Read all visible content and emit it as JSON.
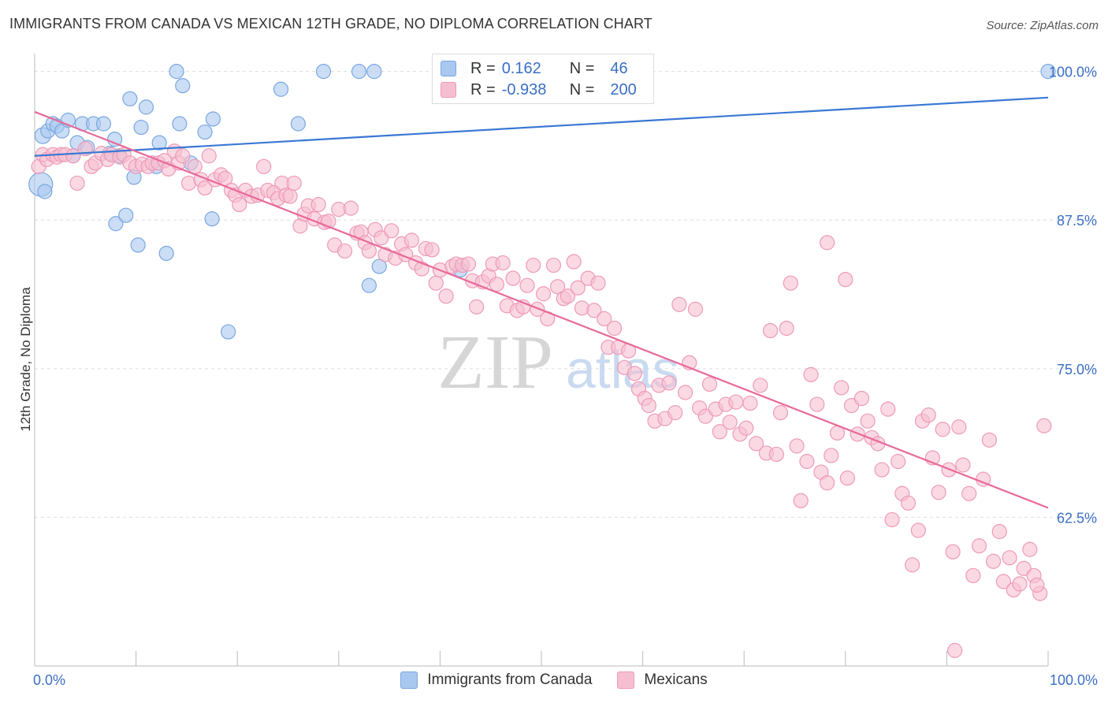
{
  "title": "IMMIGRANTS FROM CANADA VS MEXICAN 12TH GRADE, NO DIPLOMA CORRELATION CHART",
  "source": "Source: ZipAtlas.com",
  "watermark": {
    "zip": "ZIP",
    "atlas": "atlas"
  },
  "legend": {
    "rows": [
      {
        "r_label": "R =",
        "r_value": "0.162",
        "n_label": "N =",
        "n_value": "46"
      },
      {
        "r_label": "R =",
        "r_value": "-0.938",
        "n_label": "N =",
        "n_value": "200"
      }
    ]
  },
  "bottom_legend": {
    "series1": "Immigrants from Canada",
    "series2": "Mexicans"
  },
  "colors": {
    "canada_fill": "#a9c8f0",
    "canada_stroke": "#7aa7e0",
    "canada_line": "#3a78d4",
    "mexican_fill": "#f6bfd1",
    "mexican_stroke": "#ee9ab8",
    "mexican_line": "#e8699a",
    "tick_label": "#3a6fc4",
    "grid": "#dddddd"
  },
  "chart_data": {
    "type": "scatter",
    "title": "IMMIGRANTS FROM CANADA VS MEXICAN 12TH GRADE, NO DIPLOMA CORRELATION CHART",
    "xlabel": "",
    "ylabel": "12th Grade, No Diploma",
    "xlim": [
      0,
      100
    ],
    "ylim": [
      50,
      101.5
    ],
    "x_tick_labels": [
      "0.0%",
      "100.0%"
    ],
    "y_ticks": [
      62.5,
      75.0,
      87.5,
      100.0
    ],
    "y_tick_labels": [
      "62.5%",
      "75.0%",
      "87.5%",
      "100.0%"
    ],
    "grid": true,
    "legend_position": "top-center",
    "series": [
      {
        "name": "Immigrants from Canada",
        "r": 0.162,
        "n": 46,
        "trend": [
          [
            0,
            92.9
          ],
          [
            100,
            97.8
          ]
        ],
        "points": [
          [
            0.6,
            90.5
          ],
          [
            0.8,
            94.6
          ],
          [
            1.3,
            95.0
          ],
          [
            1.8,
            95.6
          ],
          [
            2.2,
            95.4
          ],
          [
            2.7,
            95.0
          ],
          [
            3.3,
            95.9
          ],
          [
            3.8,
            92.9
          ],
          [
            4.2,
            94.0
          ],
          [
            4.7,
            95.6
          ],
          [
            5.2,
            93.6
          ],
          [
            5.8,
            95.6
          ],
          [
            6.8,
            95.6
          ],
          [
            7.4,
            93.1
          ],
          [
            7.9,
            94.3
          ],
          [
            8.4,
            92.9
          ],
          [
            9.4,
            97.7
          ],
          [
            9.8,
            91.1
          ],
          [
            10.5,
            95.3
          ],
          [
            11.0,
            97.0
          ],
          [
            12.0,
            92.0
          ],
          [
            12.3,
            94.0
          ],
          [
            14.3,
            95.6
          ],
          [
            14.6,
            98.8
          ],
          [
            15.4,
            92.3
          ],
          [
            16.8,
            94.9
          ],
          [
            17.6,
            96.0
          ],
          [
            19.1,
            78.1
          ],
          [
            24.3,
            98.5
          ],
          [
            26.0,
            95.6
          ],
          [
            28.5,
            100.0
          ],
          [
            32.0,
            100.0
          ],
          [
            33.5,
            100.0
          ],
          [
            42.0,
            100.0
          ],
          [
            46.5,
            100.0
          ],
          [
            100.0,
            100.0
          ],
          [
            14.0,
            100.0
          ],
          [
            8.0,
            87.2
          ],
          [
            9.0,
            87.9
          ],
          [
            10.2,
            85.4
          ],
          [
            13.0,
            84.7
          ],
          [
            17.5,
            87.6
          ],
          [
            33.0,
            82.0
          ],
          [
            34.0,
            83.6
          ],
          [
            42.0,
            83.3
          ],
          [
            1.0,
            89.9
          ]
        ],
        "sizes": {
          "0": 14,
          "1": 10
        }
      },
      {
        "name": "Mexicans",
        "r": -0.938,
        "n": 200,
        "trend": [
          [
            0,
            96.6
          ],
          [
            100,
            63.3
          ]
        ],
        "points": [
          [
            0.4,
            92.0
          ],
          [
            0.8,
            93.0
          ],
          [
            1.2,
            92.6
          ],
          [
            1.8,
            93.0
          ],
          [
            2.2,
            92.8
          ],
          [
            2.6,
            93.0
          ],
          [
            3.0,
            93.0
          ],
          [
            3.8,
            92.9
          ],
          [
            4.2,
            90.6
          ],
          [
            5.0,
            93.5
          ],
          [
            5.6,
            92.0
          ],
          [
            6.0,
            92.3
          ],
          [
            6.6,
            93.1
          ],
          [
            7.2,
            92.6
          ],
          [
            7.6,
            93.0
          ],
          [
            8.4,
            92.8
          ],
          [
            8.8,
            93.0
          ],
          [
            9.4,
            92.3
          ],
          [
            10.0,
            92.0
          ],
          [
            10.6,
            92.2
          ],
          [
            11.2,
            92.0
          ],
          [
            11.6,
            92.3
          ],
          [
            12.2,
            92.3
          ],
          [
            12.8,
            92.5
          ],
          [
            13.2,
            91.8
          ],
          [
            13.8,
            93.3
          ],
          [
            14.2,
            92.3
          ],
          [
            14.6,
            92.9
          ],
          [
            15.2,
            90.6
          ],
          [
            15.8,
            92.0
          ],
          [
            16.4,
            90.9
          ],
          [
            16.8,
            90.2
          ],
          [
            17.2,
            92.9
          ],
          [
            17.8,
            90.9
          ],
          [
            18.4,
            91.3
          ],
          [
            18.8,
            91.0
          ],
          [
            19.4,
            90.0
          ],
          [
            19.8,
            89.6
          ],
          [
            20.2,
            88.8
          ],
          [
            20.8,
            90.0
          ],
          [
            21.4,
            89.5
          ],
          [
            22.0,
            89.6
          ],
          [
            22.6,
            92.0
          ],
          [
            23.0,
            90.0
          ],
          [
            23.6,
            89.8
          ],
          [
            24.0,
            89.3
          ],
          [
            24.4,
            90.6
          ],
          [
            24.8,
            89.6
          ],
          [
            25.2,
            89.5
          ],
          [
            25.6,
            90.6
          ],
          [
            26.2,
            87.0
          ],
          [
            26.6,
            88.0
          ],
          [
            27.0,
            88.7
          ],
          [
            27.6,
            87.6
          ],
          [
            28.0,
            88.8
          ],
          [
            28.6,
            87.3
          ],
          [
            29.0,
            87.4
          ],
          [
            29.6,
            85.4
          ],
          [
            30.0,
            88.4
          ],
          [
            30.6,
            84.9
          ],
          [
            31.2,
            88.5
          ],
          [
            31.8,
            86.4
          ],
          [
            32.2,
            86.5
          ],
          [
            32.6,
            85.6
          ],
          [
            33.0,
            84.9
          ],
          [
            33.6,
            86.7
          ],
          [
            34.2,
            86.0
          ],
          [
            34.6,
            84.6
          ],
          [
            35.2,
            86.6
          ],
          [
            35.6,
            84.3
          ],
          [
            36.2,
            85.5
          ],
          [
            36.6,
            84.6
          ],
          [
            37.2,
            85.8
          ],
          [
            37.6,
            83.9
          ],
          [
            38.2,
            83.4
          ],
          [
            38.6,
            85.1
          ],
          [
            39.2,
            85.0
          ],
          [
            39.6,
            82.2
          ],
          [
            40.0,
            83.3
          ],
          [
            40.6,
            81.1
          ],
          [
            41.2,
            83.6
          ],
          [
            41.6,
            83.8
          ],
          [
            42.2,
            83.7
          ],
          [
            42.8,
            83.8
          ],
          [
            43.2,
            82.4
          ],
          [
            43.6,
            80.2
          ],
          [
            44.2,
            82.3
          ],
          [
            44.8,
            82.8
          ],
          [
            45.2,
            83.8
          ],
          [
            45.6,
            82.1
          ],
          [
            46.2,
            83.9
          ],
          [
            46.6,
            80.3
          ],
          [
            47.2,
            82.6
          ],
          [
            47.6,
            79.9
          ],
          [
            48.2,
            80.2
          ],
          [
            48.6,
            82.0
          ],
          [
            49.2,
            83.7
          ],
          [
            49.6,
            80.0
          ],
          [
            50.2,
            81.3
          ],
          [
            50.6,
            79.2
          ],
          [
            51.2,
            83.7
          ],
          [
            51.6,
            81.9
          ],
          [
            52.2,
            80.9
          ],
          [
            52.6,
            81.1
          ],
          [
            53.2,
            84.0
          ],
          [
            53.6,
            81.8
          ],
          [
            54.0,
            80.1
          ],
          [
            54.6,
            82.6
          ],
          [
            55.2,
            79.9
          ],
          [
            55.6,
            82.2
          ],
          [
            56.2,
            79.2
          ],
          [
            56.6,
            76.8
          ],
          [
            57.2,
            78.4
          ],
          [
            57.6,
            76.8
          ],
          [
            58.2,
            75.1
          ],
          [
            58.6,
            76.5
          ],
          [
            59.2,
            74.6
          ],
          [
            59.6,
            73.3
          ],
          [
            60.2,
            72.5
          ],
          [
            60.6,
            71.9
          ],
          [
            61.2,
            70.6
          ],
          [
            61.6,
            73.6
          ],
          [
            62.2,
            70.8
          ],
          [
            62.6,
            73.8
          ],
          [
            63.2,
            71.3
          ],
          [
            63.6,
            80.4
          ],
          [
            64.2,
            73.0
          ],
          [
            64.6,
            75.5
          ],
          [
            65.2,
            80.0
          ],
          [
            65.6,
            71.7
          ],
          [
            66.2,
            71.0
          ],
          [
            66.6,
            73.7
          ],
          [
            67.2,
            71.6
          ],
          [
            67.6,
            69.7
          ],
          [
            68.2,
            72.0
          ],
          [
            68.6,
            70.5
          ],
          [
            69.2,
            72.2
          ],
          [
            69.6,
            69.5
          ],
          [
            70.2,
            70.0
          ],
          [
            70.6,
            72.1
          ],
          [
            71.2,
            68.7
          ],
          [
            71.6,
            73.6
          ],
          [
            72.2,
            67.9
          ],
          [
            72.6,
            78.2
          ],
          [
            73.2,
            67.8
          ],
          [
            73.6,
            71.3
          ],
          [
            74.2,
            78.4
          ],
          [
            74.6,
            82.2
          ],
          [
            75.2,
            68.5
          ],
          [
            75.6,
            63.9
          ],
          [
            76.2,
            67.2
          ],
          [
            76.6,
            74.5
          ],
          [
            77.2,
            72.0
          ],
          [
            77.6,
            66.3
          ],
          [
            78.2,
            65.4
          ],
          [
            78.6,
            67.7
          ],
          [
            79.2,
            69.6
          ],
          [
            79.6,
            73.4
          ],
          [
            80.2,
            65.8
          ],
          [
            80.6,
            71.9
          ],
          [
            81.2,
            69.5
          ],
          [
            81.6,
            72.5
          ],
          [
            82.2,
            70.6
          ],
          [
            82.6,
            69.2
          ],
          [
            83.2,
            68.7
          ],
          [
            83.6,
            66.5
          ],
          [
            84.2,
            71.6
          ],
          [
            84.6,
            62.3
          ],
          [
            85.2,
            67.2
          ],
          [
            85.6,
            64.5
          ],
          [
            86.2,
            63.7
          ],
          [
            86.6,
            58.5
          ],
          [
            87.2,
            61.4
          ],
          [
            87.6,
            70.6
          ],
          [
            88.2,
            71.1
          ],
          [
            88.6,
            67.5
          ],
          [
            89.2,
            64.6
          ],
          [
            89.6,
            69.9
          ],
          [
            90.2,
            66.5
          ],
          [
            90.6,
            59.6
          ],
          [
            91.2,
            70.1
          ],
          [
            91.6,
            66.9
          ],
          [
            92.2,
            64.5
          ],
          [
            92.6,
            57.6
          ],
          [
            93.2,
            60.1
          ],
          [
            93.6,
            65.7
          ],
          [
            94.2,
            69.0
          ],
          [
            94.6,
            58.8
          ],
          [
            95.2,
            61.3
          ],
          [
            95.6,
            57.1
          ],
          [
            96.2,
            59.1
          ],
          [
            96.6,
            56.4
          ],
          [
            97.2,
            56.9
          ],
          [
            97.6,
            58.2
          ],
          [
            98.2,
            59.8
          ],
          [
            98.6,
            57.6
          ],
          [
            99.2,
            56.1
          ],
          [
            99.6,
            70.2
          ],
          [
            80.0,
            82.5
          ],
          [
            78.2,
            85.6
          ],
          [
            90.8,
            51.3
          ],
          [
            98.9,
            56.8
          ]
        ]
      }
    ]
  }
}
